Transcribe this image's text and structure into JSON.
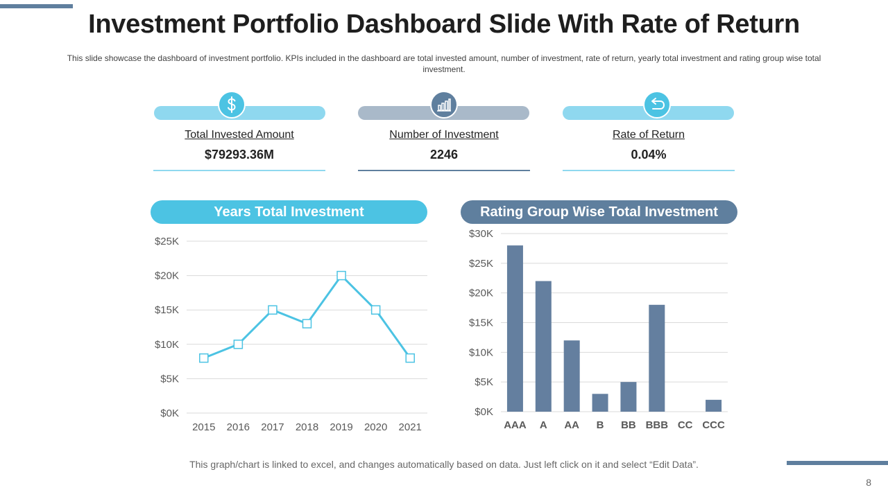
{
  "page": {
    "title": "Investment Portfolio Dashboard Slide With Rate of Return",
    "subtitle": "This slide showcase the dashboard  of investment  portfolio.  KPIs included  in the dashboard  are total invested  amount,  number  of investment,  rate of return,  yearly total investment  and rating group wise total investment.",
    "footer_note": "This graph/chart is linked to excel, and changes automatically based on data.  Just left click on it and select “Edit Data”.",
    "page_number": "8"
  },
  "kpis": [
    {
      "label": "Total Invested  Amount",
      "value": "$79293.36M",
      "icon": "dollar-icon",
      "color": "#8fd8ef",
      "icon_color": "#4cc3e3"
    },
    {
      "label": "Number of Investment",
      "value": "2246",
      "icon": "bar-chart-icon",
      "color": "#a9b9c9",
      "icon_color": "#5f7f9e"
    },
    {
      "label": "Rate of Return",
      "value": "0.04%",
      "icon": "return-arrow-icon",
      "color": "#8fd8ef",
      "icon_color": "#4cc3e3"
    }
  ],
  "colors": {
    "accent_light": "#4cc3e3",
    "accent_dark": "#5f7f9e",
    "line": "#4cc3e3",
    "bar": "#647f9f"
  },
  "chart_data": [
    {
      "type": "line",
      "title": "Years Total Investment",
      "categories": [
        "2015",
        "2016",
        "2017",
        "2018",
        "2019",
        "2020",
        "2021"
      ],
      "values": [
        8,
        10,
        15,
        13,
        20,
        15,
        8
      ],
      "ylim": [
        0,
        25
      ],
      "yticks": [
        0,
        5,
        10,
        15,
        20,
        25
      ],
      "ytick_labels": [
        "$0K",
        "$5K",
        "$10K",
        "$15K",
        "$20K",
        "$25K"
      ],
      "grid": true
    },
    {
      "type": "bar",
      "title": "Rating Group Wise Total Investment",
      "categories": [
        "AAA",
        "A",
        "AA",
        "B",
        "BB",
        "BBB",
        "CC",
        "CCC"
      ],
      "values": [
        28,
        22,
        12,
        3,
        5,
        18,
        0,
        2
      ],
      "ylim": [
        0,
        30
      ],
      "yticks": [
        0,
        5,
        10,
        15,
        20,
        25,
        30
      ],
      "ytick_labels": [
        "$0K",
        "$5K",
        "$10K",
        "$15K",
        "$20K",
        "$25K",
        "$30K"
      ],
      "grid": true
    }
  ]
}
